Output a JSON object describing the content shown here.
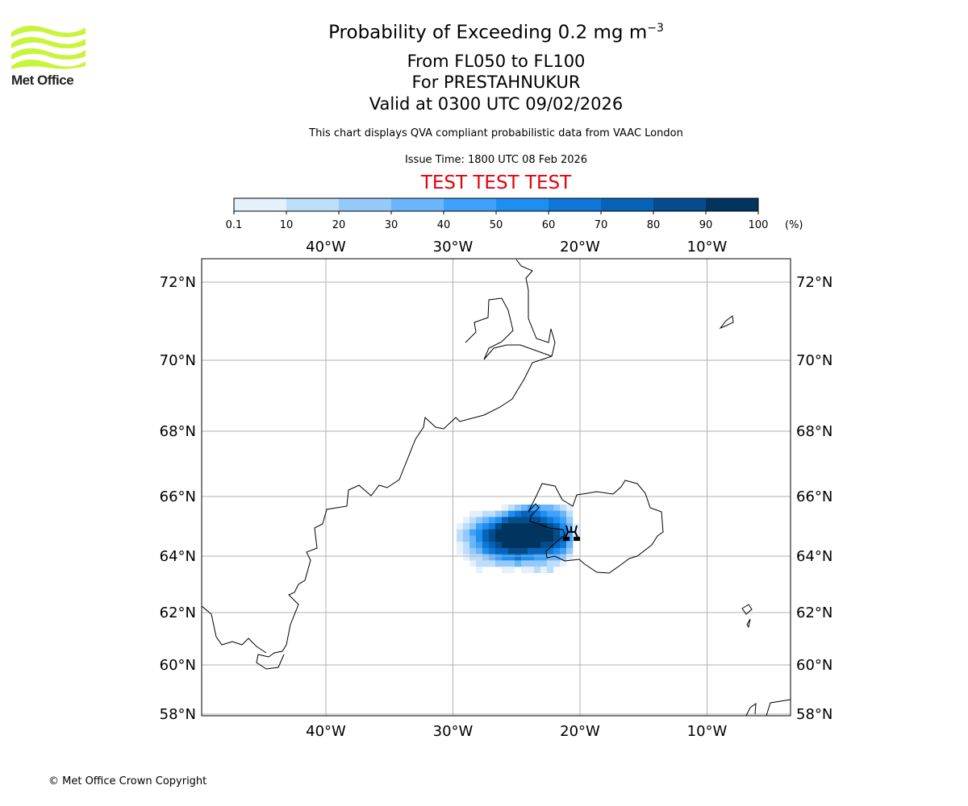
{
  "header": {
    "logo_text": "Met Office",
    "title_main": "Probability of Exceeding 0.2 mg m",
    "title_sup": "−3",
    "line2": "From FL050 to FL100",
    "line3": "For PRESTAHNUKUR",
    "line4": "Valid at 0300 UTC 09/02/2026",
    "subtitle": "This chart displays QVA compliant probabilistic data from VAAC London",
    "issue_time": "Issue Time: 1800 UTC 08 Feb 2026",
    "test_banner": "TEST TEST TEST",
    "test_color": "#e8000b"
  },
  "footer": {
    "copyright": "© Met Office Crown Copyright"
  },
  "chart_data": {
    "type": "heatmap",
    "title": "Probability of Exceeding 0.2 mg m-3",
    "colorbar": {
      "ticks": [
        "0.1",
        "10",
        "20",
        "30",
        "40",
        "50",
        "60",
        "70",
        "80",
        "90",
        "100"
      ],
      "unit": "(%)",
      "colors": [
        "#e3f1fd",
        "#bddefb",
        "#95c9fa",
        "#6bb5fa",
        "#3ea1fb",
        "#1e8ff0",
        "#0f77d8",
        "#0663b8",
        "#044c8c",
        "#023460"
      ]
    },
    "axes": {
      "lon_ticks": [
        -40,
        -30,
        -20,
        -10
      ],
      "lon_labels": [
        "40°W",
        "30°W",
        "20°W",
        "10°W"
      ],
      "lat_ticks": [
        72,
        70,
        68,
        66,
        64,
        62,
        60,
        58
      ],
      "lat_labels": [
        "72°N",
        "70°N",
        "68°N",
        "66°N",
        "64°N",
        "62°N",
        "60°N",
        "58°N"
      ],
      "lon_range": [
        -49.8,
        -3.4
      ],
      "lat_range": [
        57.9,
        72.6
      ],
      "grid": true
    },
    "volcano": {
      "name": "PRESTAHNUKUR",
      "lon": -20.6,
      "lat": 64.6
    },
    "probability_grid": {
      "lon_start": -28.5,
      "lon_step": 0.5,
      "lat_start": 65.4,
      "lat_step": -0.17,
      "bin_index_note": "0 = below 0.1%, n = bin n of colorbar",
      "rows": [
        [
          0,
          0,
          0,
          0,
          0,
          0,
          0,
          1,
          2,
          3,
          4,
          5,
          5,
          4,
          4,
          3,
          2,
          1,
          0
        ],
        [
          0,
          0,
          1,
          1,
          2,
          2,
          3,
          4,
          6,
          7,
          8,
          8,
          7,
          6,
          5,
          5,
          4,
          2,
          0
        ],
        [
          0,
          1,
          2,
          3,
          4,
          5,
          6,
          8,
          9,
          9,
          9,
          9,
          9,
          8,
          7,
          6,
          5,
          3,
          0
        ],
        [
          1,
          2,
          3,
          5,
          6,
          7,
          9,
          10,
          10,
          10,
          10,
          10,
          10,
          10,
          9,
          8,
          6,
          4,
          1
        ],
        [
          2,
          3,
          5,
          6,
          8,
          9,
          10,
          10,
          10,
          10,
          10,
          10,
          10,
          10,
          10,
          9,
          7,
          5,
          1
        ],
        [
          2,
          3,
          4,
          6,
          8,
          9,
          10,
          10,
          10,
          10,
          10,
          10,
          10,
          10,
          10,
          9,
          8,
          5,
          1
        ],
        [
          1,
          2,
          4,
          5,
          7,
          8,
          9,
          10,
          10,
          10,
          10,
          10,
          10,
          9,
          9,
          8,
          7,
          4,
          0
        ],
        [
          1,
          2,
          3,
          4,
          6,
          7,
          8,
          8,
          9,
          9,
          9,
          8,
          8,
          8,
          7,
          6,
          5,
          3,
          0
        ],
        [
          0,
          1,
          2,
          2,
          3,
          4,
          5,
          6,
          6,
          7,
          6,
          6,
          5,
          5,
          4,
          4,
          3,
          1,
          0
        ],
        [
          0,
          0,
          1,
          2,
          2,
          2,
          3,
          3,
          3,
          4,
          3,
          3,
          3,
          3,
          2,
          2,
          1,
          0,
          0
        ],
        [
          0,
          0,
          0,
          1,
          0,
          0,
          0,
          1,
          1,
          0,
          1,
          1,
          2,
          1,
          2,
          0,
          0,
          0,
          0
        ]
      ]
    }
  }
}
